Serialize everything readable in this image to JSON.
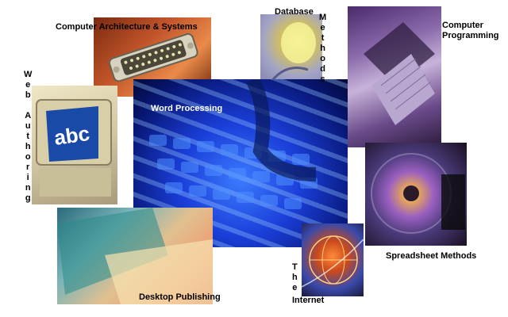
{
  "labels": {
    "arch": "Computer Architecture & Systems",
    "db_top": "Database",
    "db_vertical": [
      "M",
      "e",
      "t",
      "h",
      "o",
      "d",
      "s"
    ],
    "prog_line1": "Computer",
    "prog_line2": "Programming",
    "web_vertical_1": [
      "W",
      "e",
      "b"
    ],
    "web_vertical_2": [
      "A",
      "u",
      "t",
      "h",
      "o",
      "r",
      "i",
      "n",
      "g"
    ],
    "word": "Word Processing",
    "sheet": "Spreadsheet Methods",
    "net_vertical": [
      "T",
      "h",
      "e"
    ],
    "net_bottom": "Internet",
    "dtp": "Desktop Publishing"
  },
  "monitor_text": "abc"
}
